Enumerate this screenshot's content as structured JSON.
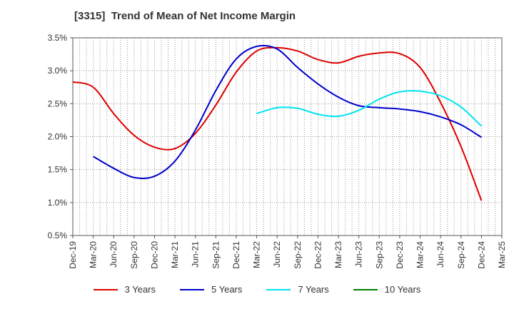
{
  "chart_data": {
    "type": "line",
    "title": "[3315]  Trend of Mean of Net Income Margin",
    "xlabel": "",
    "ylabel": "",
    "ylim": [
      0.5,
      3.5
    ],
    "y_ticks": [
      "0.5%",
      "1.0%",
      "1.5%",
      "2.0%",
      "2.5%",
      "3.0%",
      "3.5%"
    ],
    "y_tick_values": [
      0.5,
      1.0,
      1.5,
      2.0,
      2.5,
      3.0,
      3.5
    ],
    "x": [
      "Dec-19",
      "Mar-20",
      "Jun-20",
      "Sep-20",
      "Dec-20",
      "Mar-21",
      "Jun-21",
      "Sep-21",
      "Dec-21",
      "Mar-22",
      "Jun-22",
      "Sep-22",
      "Dec-22",
      "Mar-23",
      "Jun-23",
      "Sep-23",
      "Dec-23",
      "Mar-24",
      "Jun-24",
      "Sep-24",
      "Dec-24",
      "Mar-25"
    ],
    "grid": true,
    "legend_position": "bottom",
    "series": [
      {
        "name": "3 Years",
        "color": "#dd0000",
        "values": [
          2.83,
          2.75,
          2.35,
          2.02,
          1.84,
          1.82,
          2.05,
          2.48,
          2.98,
          3.3,
          3.35,
          3.3,
          3.17,
          3.12,
          3.22,
          3.27,
          3.26,
          3.05,
          2.52,
          1.85,
          1.03,
          null
        ]
      },
      {
        "name": "5 Years",
        "color": "#0000cc",
        "values": [
          null,
          1.7,
          1.52,
          1.38,
          1.4,
          1.63,
          2.1,
          2.7,
          3.18,
          3.37,
          3.33,
          3.05,
          2.8,
          2.6,
          2.47,
          2.44,
          2.42,
          2.38,
          2.3,
          2.18,
          1.99,
          null
        ]
      },
      {
        "name": "7 Years",
        "color": "#00e5ee",
        "values": [
          null,
          null,
          null,
          null,
          null,
          null,
          null,
          null,
          null,
          2.35,
          2.44,
          2.43,
          2.34,
          2.31,
          2.4,
          2.57,
          2.68,
          2.69,
          2.62,
          2.45,
          2.16,
          null
        ]
      },
      {
        "name": "10 Years",
        "color": "#008000",
        "values": [
          null,
          null,
          null,
          null,
          null,
          null,
          null,
          null,
          null,
          null,
          null,
          null,
          null,
          null,
          null,
          null,
          null,
          null,
          null,
          null,
          null,
          null
        ]
      }
    ]
  }
}
